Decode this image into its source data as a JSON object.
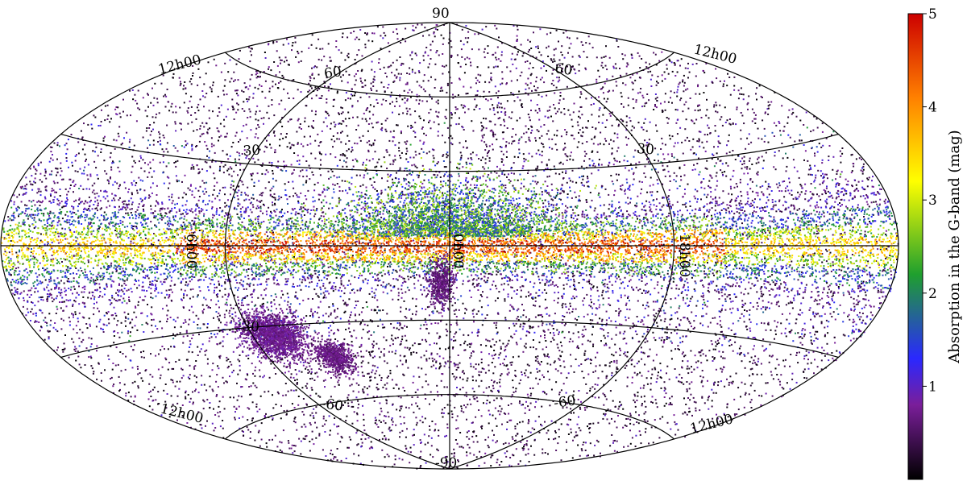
{
  "chart_data": {
    "type": "scatter",
    "projection": "aitoff",
    "title": "",
    "xlabel": "",
    "ylabel": "",
    "grid": true,
    "latitude_lines": [
      -60,
      -30,
      0,
      30,
      60
    ],
    "grid_labels": {
      "top_pole": "90",
      "bottom_pole": "-90",
      "upper_left_ra": "12h00",
      "upper_right_ra": "12h00",
      "lower_left_ra": "12h00",
      "lower_right_ra": "12h00",
      "left_equator": "6h00",
      "center_equator": "0h00",
      "right_equator": "18h00",
      "lat_60_left": "60",
      "lat_60_right": "60",
      "lat_30_left": "30",
      "lat_30_right": "30",
      "lat_m30_left": "30",
      "lat_m60_left": "-60",
      "lat_m60_right": "-60"
    },
    "colorbar": {
      "label": "Absorption in the G-band (mag)",
      "range": [
        0,
        5
      ],
      "ticks": [
        "1",
        "2",
        "3",
        "4",
        "5"
      ],
      "colormap": [
        "#000000",
        "#7a1e9a",
        "#2a28ff",
        "#1f9f2e",
        "#ffff00",
        "#ff8000",
        "#cc0000"
      ]
    },
    "features": [
      {
        "name": "galactic plane band",
        "latitude": 0,
        "absorption": 4.5
      },
      {
        "name": "large magellanic cloud",
        "longitude_deg": -80,
        "latitude_deg": -33,
        "absorption": 0.8
      },
      {
        "name": "small magellanic cloud",
        "longitude_deg": -60,
        "latitude_deg": -44,
        "absorption": 0.6
      },
      {
        "name": "southern blob",
        "longitude_deg": -4,
        "latitude_deg": -14,
        "absorption": 0.5
      }
    ],
    "colors": {
      "background": "#ffffff",
      "grid": "#000000"
    }
  }
}
